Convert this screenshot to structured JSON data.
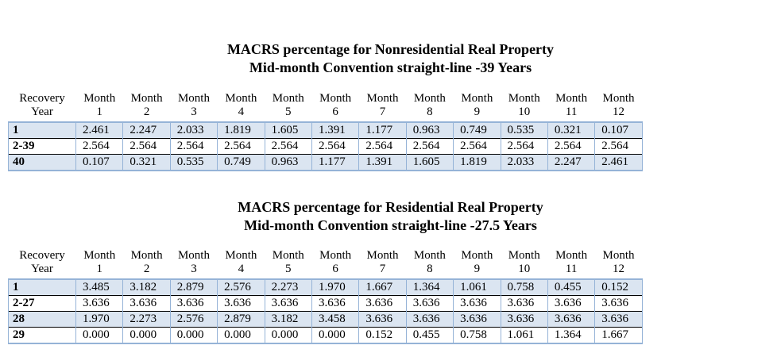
{
  "page": {
    "background": "#ffffff"
  },
  "colors": {
    "shaded_row": "#dbe5f1",
    "accent_border": "#95b3d7",
    "row_divider": "#000000",
    "text": "#000000"
  },
  "tables": [
    {
      "id": "nonresidential",
      "title_line1": "MACRS percentage for Nonresidential Real Property",
      "title_line2": "Mid-month Convention straight-line -39 Years",
      "header": {
        "recovery_label_line1": "Recovery",
        "recovery_label_line2": "Year",
        "month_label": "Month",
        "month_numbers": [
          "1",
          "2",
          "3",
          "4",
          "5",
          "6",
          "7",
          "8",
          "9",
          "10",
          "11",
          "12"
        ]
      },
      "rows": [
        {
          "recovery_year": "1",
          "shaded": true,
          "values": [
            "2.461",
            "2.247",
            "2.033",
            "1.819",
            "1.605",
            "1.391",
            "1.177",
            "0.963",
            "0.749",
            "0.535",
            "0.321",
            "0.107"
          ]
        },
        {
          "recovery_year": "2-39",
          "shaded": false,
          "values": [
            "2.564",
            "2.564",
            "2.564",
            "2.564",
            "2.564",
            "2.564",
            "2.564",
            "2.564",
            "2.564",
            "2.564",
            "2.564",
            "2.564"
          ]
        },
        {
          "recovery_year": "40",
          "shaded": true,
          "values": [
            "0.107",
            "0.321",
            "0.535",
            "0.749",
            "0.963",
            "1.177",
            "1.391",
            "1.605",
            "1.819",
            "2.033",
            "2.247",
            "2.461"
          ]
        }
      ]
    },
    {
      "id": "residential",
      "title_line1": "MACRS percentage for Residential Real Property",
      "title_line2": "Mid-month Convention straight-line -27.5 Years",
      "header": {
        "recovery_label_line1": "Recovery",
        "recovery_label_line2": "Year",
        "month_label": "Month",
        "month_numbers": [
          "1",
          "2",
          "3",
          "4",
          "5",
          "6",
          "7",
          "8",
          "9",
          "10",
          "11",
          "12"
        ]
      },
      "rows": [
        {
          "recovery_year": "1",
          "shaded": true,
          "values": [
            "3.485",
            "3.182",
            "2.879",
            "2.576",
            "2.273",
            "1.970",
            "1.667",
            "1.364",
            "1.061",
            "0.758",
            "0.455",
            "0.152"
          ]
        },
        {
          "recovery_year": "2-27",
          "shaded": false,
          "values": [
            "3.636",
            "3.636",
            "3.636",
            "3.636",
            "3.636",
            "3.636",
            "3.636",
            "3.636",
            "3.636",
            "3.636",
            "3.636",
            "3.636"
          ]
        },
        {
          "recovery_year": "28",
          "shaded": true,
          "values": [
            "1.970",
            "2.273",
            "2.576",
            "2.879",
            "3.182",
            "3.458",
            "3.636",
            "3.636",
            "3.636",
            "3.636",
            "3.636",
            "3.636"
          ]
        },
        {
          "recovery_year": "29",
          "shaded": false,
          "values": [
            "0.000",
            "0.000",
            "0.000",
            "0.000",
            "0.000",
            "0.000",
            "0.152",
            "0.455",
            "0.758",
            "1.061",
            "1.364",
            "1.667"
          ]
        }
      ]
    }
  ]
}
